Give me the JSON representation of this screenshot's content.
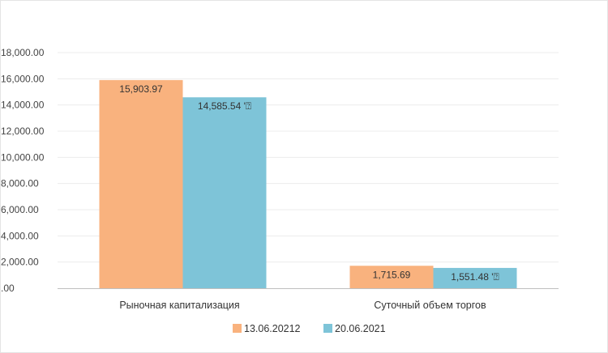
{
  "chart_data": {
    "type": "bar",
    "title": "",
    "xlabel": "",
    "ylabel": "",
    "categories": [
      "Рыночная капитализация",
      "Суточный объем торгов"
    ],
    "series": [
      {
        "name": "13.06.20212",
        "color": "#F9B27E",
        "values": [
          15903.97,
          1715.69
        ],
        "data_labels": [
          "15,903.97",
          "1,715.69"
        ]
      },
      {
        "name": "20.06.2021",
        "color": "#7EC4D8",
        "values": [
          14585.54,
          1551.48
        ],
        "data_labels": [
          "14,585.54 '⍰",
          "1,551.48 '⍰"
        ]
      }
    ],
    "ylim": [
      0,
      18000
    ],
    "y_ticks": [
      0,
      2000,
      4000,
      6000,
      8000,
      10000,
      12000,
      14000,
      16000,
      18000
    ],
    "y_tick_labels": [
      ".00",
      "2,000.00",
      "4,000.00",
      "6,000.00",
      "8,000.00",
      "10,000.00",
      "12,000.00",
      "14,000.00",
      "16,000.00",
      "18,000.00"
    ],
    "grid": true,
    "legend_position": "bottom-center"
  }
}
